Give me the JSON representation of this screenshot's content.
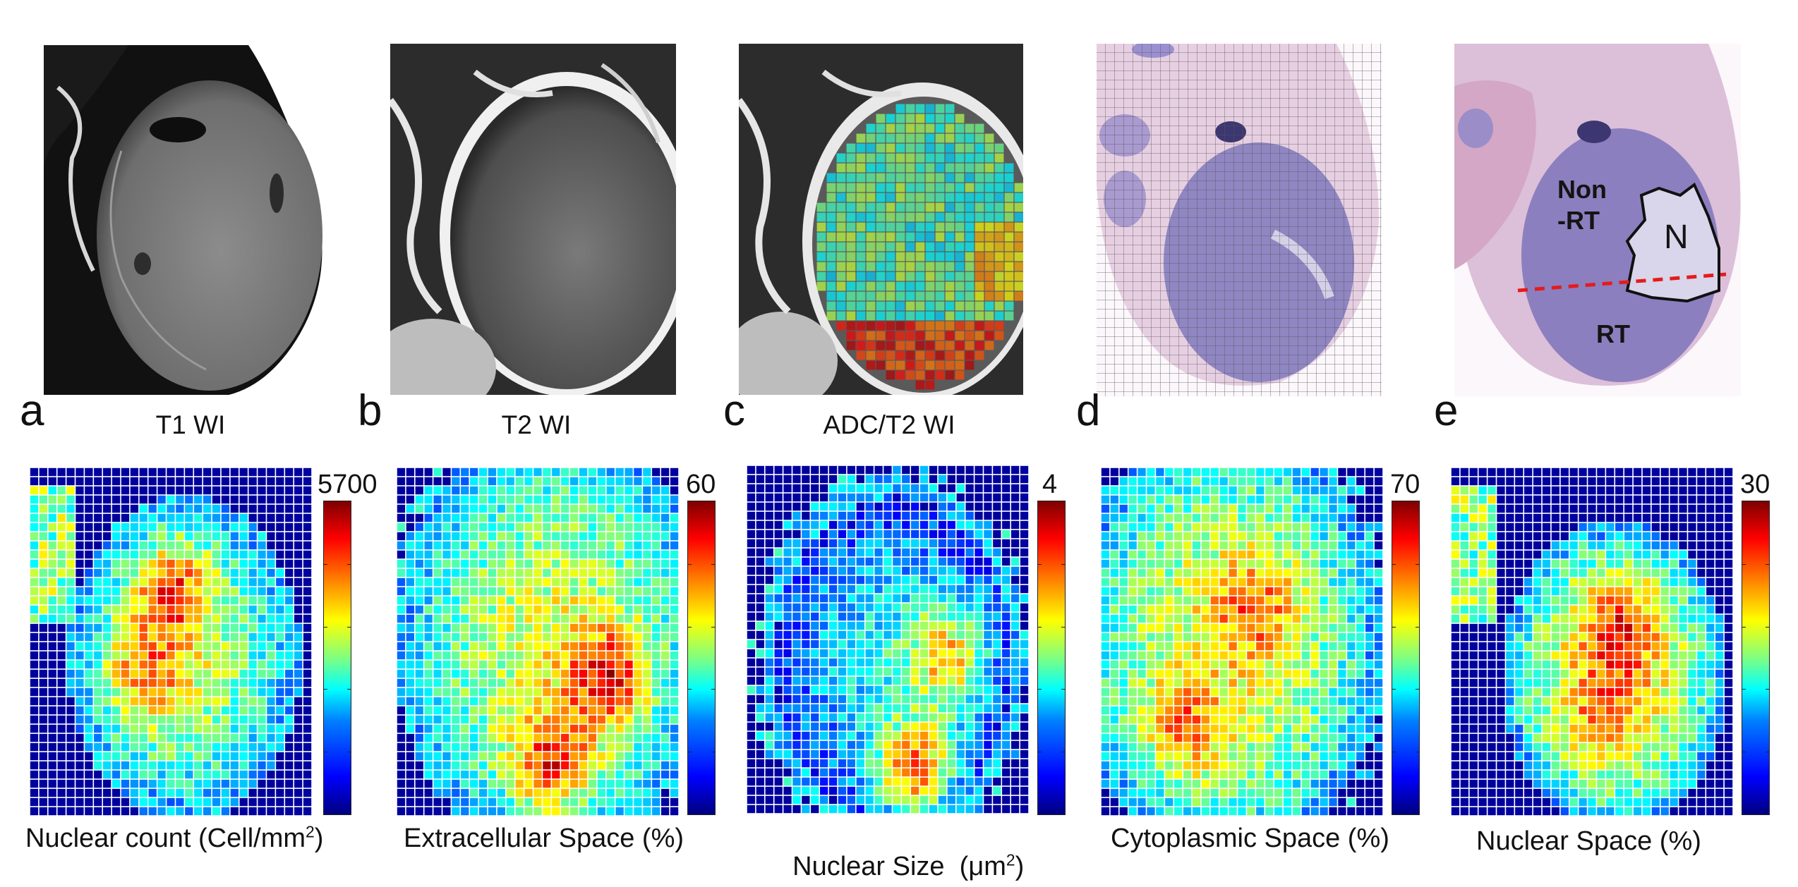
{
  "top_panels": [
    {
      "letter": "a",
      "caption": "T1 WI",
      "icon": "mri-t1-image"
    },
    {
      "letter": "b",
      "caption": "T2 WI",
      "icon": "mri-t2-image"
    },
    {
      "letter": "c",
      "caption": "ADC/T2 WI",
      "icon": "adc-overlay-image"
    },
    {
      "letter": "d",
      "caption": "",
      "icon": "histology-grid-image"
    },
    {
      "letter": "e",
      "caption": "",
      "icon": "histology-annotated-image"
    }
  ],
  "histology_labels": {
    "non_rt_1": "Non",
    "non_rt_2": "-RT",
    "necrosis": "N",
    "rt": "RT"
  },
  "maps": [
    {
      "caption": "Nuclear count (Cell/mm",
      "sup": "2",
      "caption_end": ")",
      "max": "5700"
    },
    {
      "caption": "Extracellular Space (%)",
      "sup": "",
      "caption_end": "",
      "max": "60"
    },
    {
      "caption": "Nuclear Size  (μm",
      "sup": "2",
      "caption_end": ")",
      "max": "4"
    },
    {
      "caption": "Cytoplasmic Space (%)",
      "sup": "",
      "caption_end": "",
      "max": "70"
    },
    {
      "caption": "Nuclear Space (%)",
      "sup": "",
      "caption_end": "",
      "max": "30"
    }
  ],
  "colors": {
    "grid_line": "#ffffff",
    "background_blue": "#00008f",
    "dashed_line": "#e51b1b"
  }
}
